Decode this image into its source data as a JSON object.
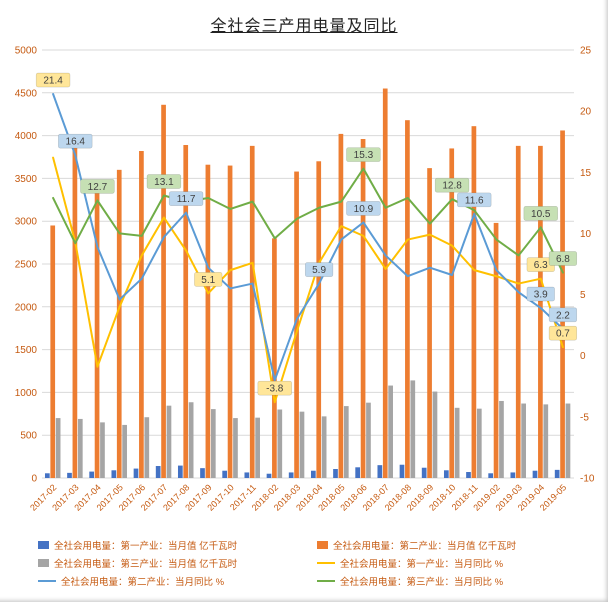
{
  "chart_data": {
    "type": "bar",
    "subtype": "grouped-bars-with-lines",
    "title": "全社会三产用电量及同比",
    "categories": [
      "2017-02",
      "2017-03",
      "2017-04",
      "2017-05",
      "2017-06",
      "2017-07",
      "2017-08",
      "2017-09",
      "2017-10",
      "2017-11",
      "2018-02",
      "2018-03",
      "2018-04",
      "2018-05",
      "2018-06",
      "2018-07",
      "2018-08",
      "2018-09",
      "2018-10",
      "2018-11",
      "2019-02",
      "2019-03",
      "2019-04",
      "2019-05"
    ],
    "left_axis": {
      "min": 0,
      "max": 5000,
      "step": 500
    },
    "right_axis": {
      "min": -10,
      "max": 25,
      "step": 5
    },
    "grid": true,
    "x_tick_rotation": -45,
    "bar_series": [
      {
        "name": "全社会用电量：第一产业：当月值 亿千瓦时",
        "color": "#4472c4",
        "axis": "left",
        "values": [
          55,
          60,
          75,
          90,
          110,
          140,
          145,
          115,
          85,
          65,
          50,
          65,
          85,
          105,
          125,
          150,
          155,
          120,
          90,
          70,
          55,
          65,
          85,
          95
        ]
      },
      {
        "name": "全社会用电量：第二产业：当月值 亿千瓦时",
        "color": "#ed7d31",
        "axis": "left",
        "values": [
          2950,
          3870,
          3480,
          3600,
          3820,
          4360,
          3890,
          3660,
          3650,
          3880,
          2800,
          3580,
          3700,
          4020,
          3960,
          4550,
          4180,
          3620,
          3850,
          4110,
          2980,
          3880,
          3880,
          4060
        ]
      },
      {
        "name": "全社会用电量：第三产业：当月值 亿千瓦时",
        "color": "#a5a5a5",
        "axis": "left",
        "values": [
          700,
          690,
          650,
          620,
          710,
          845,
          885,
          805,
          700,
          705,
          800,
          775,
          720,
          840,
          880,
          1080,
          1140,
          1010,
          820,
          810,
          900,
          870,
          860,
          870
        ]
      }
    ],
    "line_series": [
      {
        "name": "全社会用电量：第一产业：当月同比 %",
        "color": "#ffc000",
        "axis": "right",
        "values": [
          16.2,
          9.3,
          -0.9,
          4.0,
          8.2,
          11.3,
          8.6,
          5.1,
          7.0,
          7.6,
          -3.8,
          2.0,
          7.6,
          10.6,
          9.8,
          7.1,
          9.5,
          9.9,
          9.0,
          7.0,
          6.5,
          5.9,
          6.3,
          0.7
        ]
      },
      {
        "name": "全社会用电量：第二产业：当月同比 %",
        "color": "#5b9bd5",
        "axis": "right",
        "values": [
          21.4,
          16.4,
          8.9,
          4.6,
          6.3,
          9.7,
          11.7,
          7.2,
          5.5,
          5.9,
          -2.0,
          3.0,
          5.9,
          9.5,
          10.9,
          8.2,
          6.5,
          7.2,
          6.6,
          11.6,
          7.0,
          5.2,
          3.9,
          2.2
        ]
      },
      {
        "name": "全社会用电量：第三产业：当月同比 %",
        "color": "#70ad47",
        "axis": "right",
        "values": [
          12.9,
          9.2,
          12.7,
          10.0,
          9.8,
          13.1,
          12.6,
          12.9,
          12.0,
          12.6,
          9.6,
          11.2,
          12.1,
          12.6,
          15.3,
          12.1,
          12.9,
          10.8,
          12.8,
          11.9,
          9.5,
          8.2,
          10.5,
          6.8
        ]
      }
    ],
    "annotations": [
      {
        "text": "21.4",
        "series": 1,
        "index": 0,
        "box": "#ffe699"
      },
      {
        "text": "16.4",
        "series": 1,
        "index": 1,
        "box": "#bdd7ee"
      },
      {
        "text": "12.7",
        "series": 2,
        "index": 2,
        "box": "#c6e0b4"
      },
      {
        "text": "13.1",
        "series": 2,
        "index": 5,
        "box": "#c6e0b4"
      },
      {
        "text": "11.7",
        "series": 1,
        "index": 6,
        "box": "#bdd7ee"
      },
      {
        "text": "5.1",
        "series": 0,
        "index": 7,
        "box": "#ffe699"
      },
      {
        "text": "-3.8",
        "series": 0,
        "index": 10,
        "box": "#ffe699"
      },
      {
        "text": "5.9",
        "series": 1,
        "index": 12,
        "box": "#bdd7ee"
      },
      {
        "text": "15.3",
        "series": 2,
        "index": 14,
        "box": "#c6e0b4"
      },
      {
        "text": "10.9",
        "series": 1,
        "index": 14,
        "box": "#bdd7ee"
      },
      {
        "text": "12.8",
        "series": 2,
        "index": 18,
        "box": "#c6e0b4"
      },
      {
        "text": "11.6",
        "series": 1,
        "index": 19,
        "box": "#bdd7ee"
      },
      {
        "text": "10.5",
        "series": 2,
        "index": 22,
        "box": "#c6e0b4"
      },
      {
        "text": "6.3",
        "series": 0,
        "index": 22,
        "box": "#ffe699"
      },
      {
        "text": "3.9",
        "series": 1,
        "index": 22,
        "box": "#bdd7ee"
      },
      {
        "text": "6.8",
        "series": 2,
        "index": 23,
        "box": "#c6e0b4"
      },
      {
        "text": "2.2",
        "series": 1,
        "index": 23,
        "box": "#bdd7ee"
      },
      {
        "text": "0.7",
        "series": 0,
        "index": 23,
        "box": "#ffe699"
      }
    ],
    "legend_position": "bottom",
    "styles": {
      "axis_label_color": "#c55a11",
      "grid_color": "#d9d9d9",
      "annotation_text_color": "#404040",
      "title_color": "#222222"
    }
  }
}
